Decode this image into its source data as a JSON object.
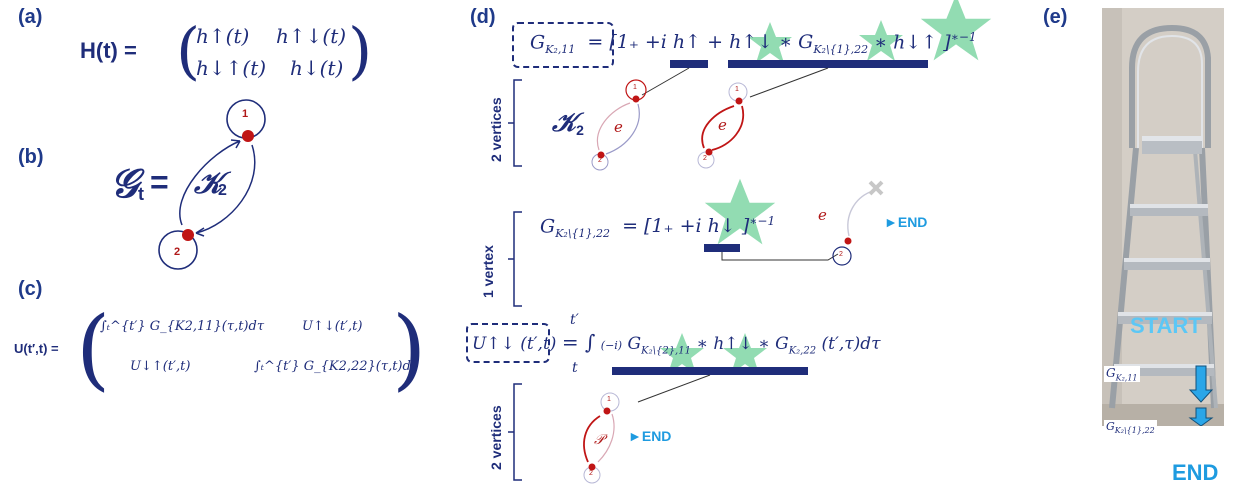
{
  "panels": {
    "a": "(a)",
    "b": "(b)",
    "c": "(c)",
    "d": "(d)",
    "e": "(e)"
  },
  "a": {
    "lhs": "H(t) =",
    "m11": "h↑(t)",
    "m12": "h↑↓(t)",
    "m21": "h↓↑(t)",
    "m22": "h↓(t)"
  },
  "b": {
    "graph_symbol": "𝒢",
    "graph_sub": "t",
    "eq": "=",
    "k_symbol": "𝒦",
    "k_sub": "2",
    "node1": "1",
    "node2": "2"
  },
  "c": {
    "lhs": "U(t′,t) =",
    "m11": "∫ₜ^{t′} G_{K2,11}(τ,t)dτ",
    "m12": "U↑↓(t′,t)",
    "m21": "U↓↑(t′,t)",
    "m22": "∫ₜ^{t′} G_{K2,22}(τ,t)dτ"
  },
  "d": {
    "eq1_lhs": "G",
    "eq1_lhs_sub": "K₂,11",
    "eq1_rhs": "= [1₊ +i h↑ + h↑↓ ∗ G",
    "eq1_rhs_sub": "K₂\\{1},22",
    "eq1_rhs_tail": "∗ h↓↑ ]",
    "eq1_exp": "∗−1",
    "vertices2": "2 vertices",
    "k2": "𝒦",
    "k2_sub": "2",
    "e_label": "𝑒",
    "eq2_lhs": "G",
    "eq2_lhs_sub": "K₂\\{1},22",
    "eq2_rhs": "= [1₊ +i h↓ ]",
    "eq2_exp": "∗−1",
    "vertex1": "1 vertex",
    "end": "►END",
    "eq3_lhs": "U↑↓ (t′,t)",
    "eq3_int": "= ∫",
    "eq3_lim_lo": "t",
    "eq3_lim_hi": "t′",
    "eq3_factor": "(−i)",
    "eq3_g1": "G",
    "eq3_g1_sub": "K₂\\{2},11",
    "eq3_mid": "∗ h↑↓ ∗ G",
    "eq3_g2_sub": "K₂,22",
    "eq3_tail": "(t′,τ)dτ",
    "vertices2b": "2 vertices",
    "p_label": "𝒫",
    "node1": "1",
    "node2": "2"
  },
  "e": {
    "start": "START",
    "g11": "G",
    "g11_sub": "K₂,11",
    "g22": "G",
    "g22_sub": "K₂\\{1},22",
    "end": "END"
  },
  "colors": {
    "navy": "#1f2d7a",
    "red": "#b01818",
    "light_blue": "#1e9be0",
    "green_star": "#7fd6a4"
  }
}
